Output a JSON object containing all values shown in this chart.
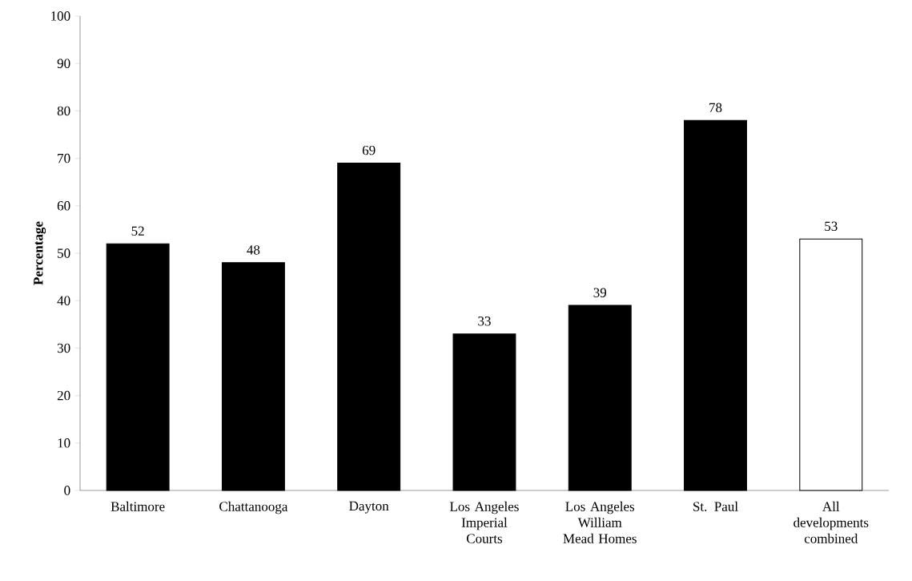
{
  "chart_data": {
    "type": "bar",
    "ylabel": "**Percentage**",
    "categories": [
      "Baltimore",
      "Chattanooga",
      "Dayton",
      "Los Angeles Imperial Courts",
      "Los Angeles William Mead Homes",
      "St. Paul",
      "All developments combined"
    ],
    "values": [
      52,
      48,
      69,
      33,
      39,
      78,
      53
    ],
    "colors": [
      "#000000",
      "#000000",
      "#000000",
      "#000000",
      "#000000",
      "#000000",
      "#ffffff"
    ],
    "ylim": [
      0,
      100
    ],
    "yticks": [
      0,
      10,
      20,
      30,
      40,
      50,
      60,
      70,
      80,
      90,
      100
    ],
    "data_labels": true,
    "grid": false
  }
}
